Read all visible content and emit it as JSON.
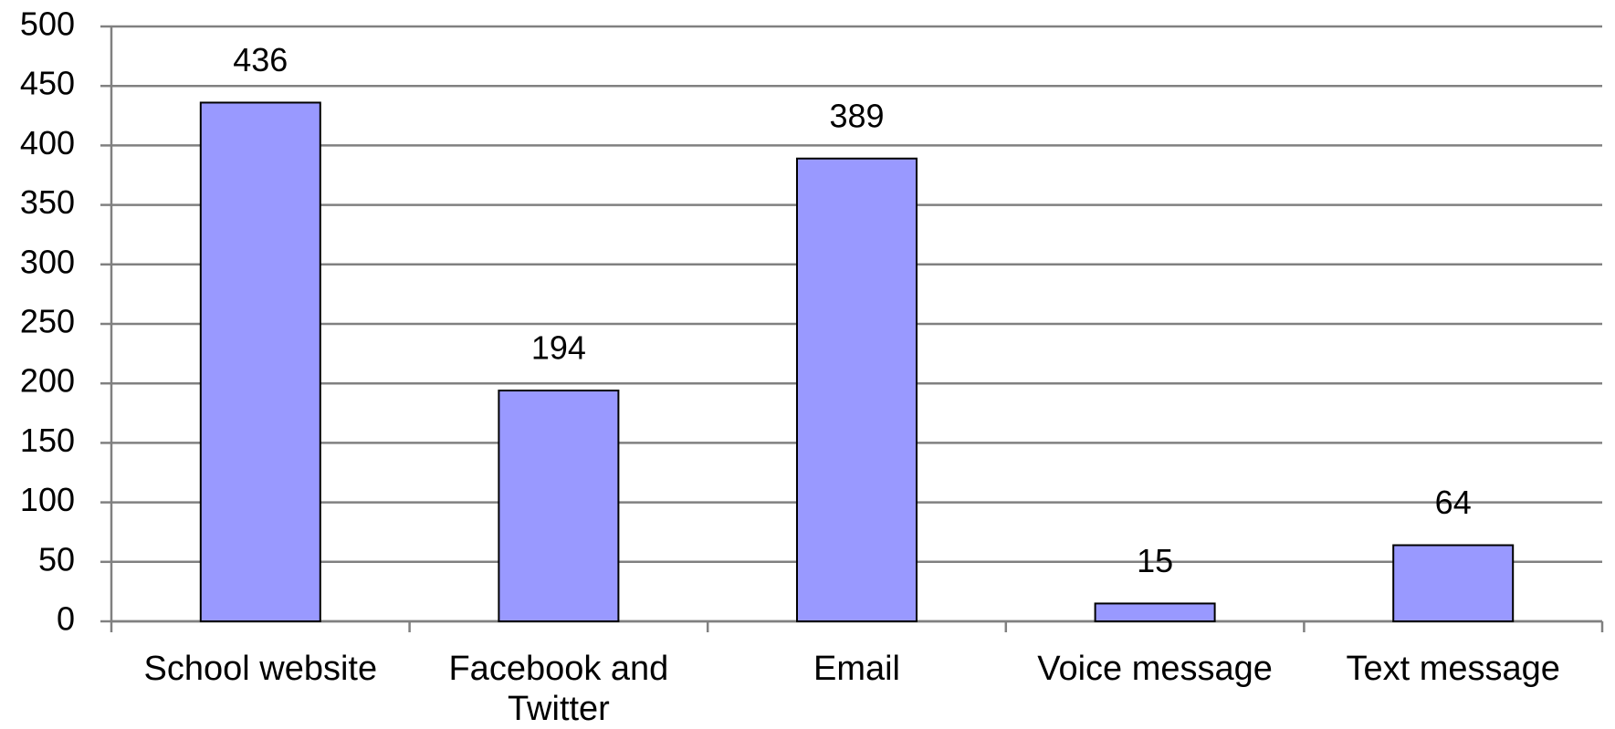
{
  "chart_data": {
    "type": "bar",
    "categories": [
      "School website",
      "Facebook and Twitter",
      "Email",
      "Voice message",
      "Text message"
    ],
    "values": [
      436,
      194,
      389,
      15,
      64
    ],
    "color": "#9999ff",
    "ylim": [
      0,
      500
    ],
    "yticks": [
      0,
      50,
      100,
      150,
      200,
      250,
      300,
      350,
      400,
      450,
      500
    ],
    "grid": true
  }
}
